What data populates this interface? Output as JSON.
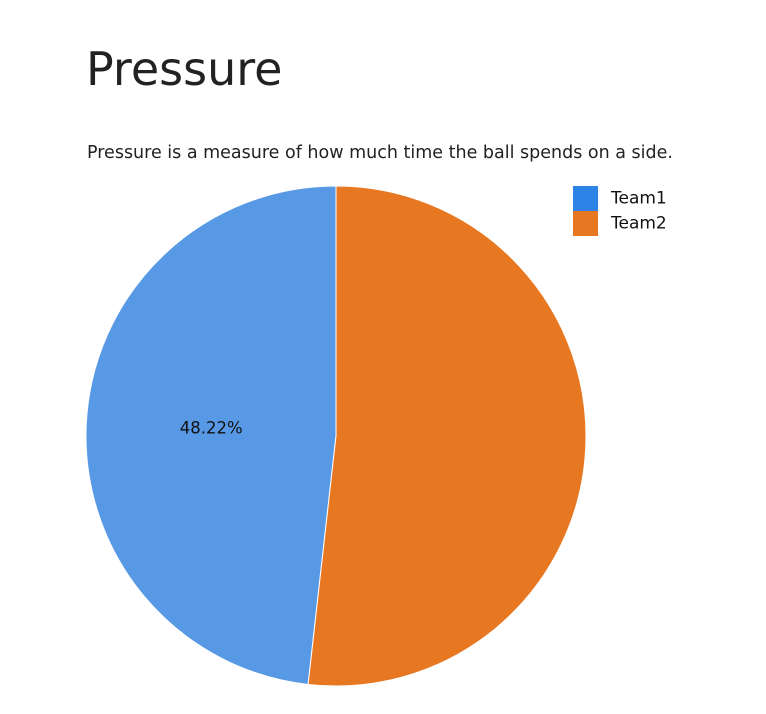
{
  "page": {
    "title": "Pressure",
    "description": "Pressure is a measure of how much time the ball spends on a side."
  },
  "chart_data": {
    "type": "pie",
    "categories": [
      "Team1",
      "Team2"
    ],
    "values": [
      48.22,
      51.78
    ],
    "data_labels": [
      "48.22%",
      ""
    ],
    "colors": [
      "#5899e6",
      "#e87722"
    ],
    "legend": {
      "entries": [
        "Team1",
        "Team2"
      ],
      "colors": [
        "#2e83e6",
        "#e87722"
      ],
      "position": "top-right"
    },
    "start_angle_deg": 0,
    "direction": "counterclockwise"
  }
}
